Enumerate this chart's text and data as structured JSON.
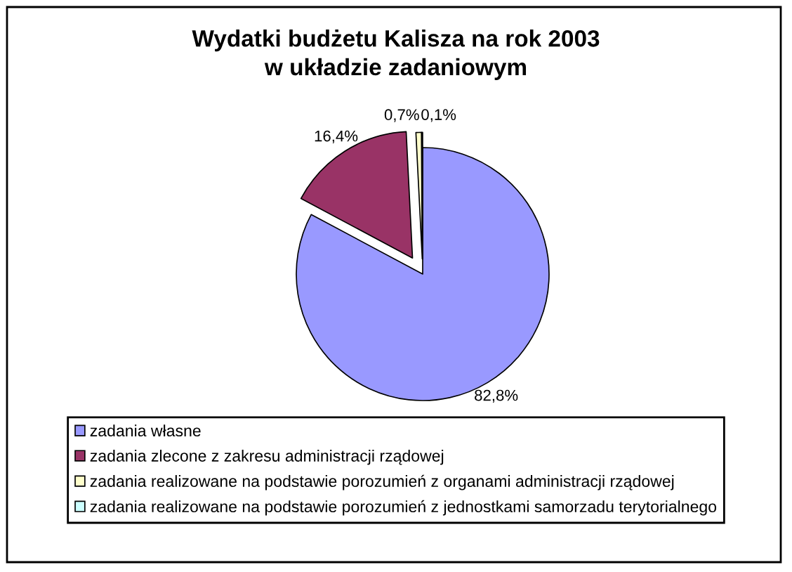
{
  "chart_data": {
    "type": "pie",
    "title": "Wydatki budżetu Kalisza na rok 2003\nw układzie zadaniowym",
    "categories": [
      "zadania własne",
      "zadania zlecone z zakresu administracji rządowej",
      "zadania realizowane na podstawie porozumień z organami administracji rządowej",
      "zadania realizowane na podstawie porozumień z jednostkami samorzadu terytorialnego"
    ],
    "values": [
      82.8,
      16.4,
      0.7,
      0.1
    ],
    "colors": [
      "#9999ff",
      "#993366",
      "#ffffcc",
      "#ccffff"
    ],
    "value_labels": [
      "82,8%",
      "16,4%",
      "0,7%",
      "0,1%"
    ],
    "legend": "bottom"
  }
}
